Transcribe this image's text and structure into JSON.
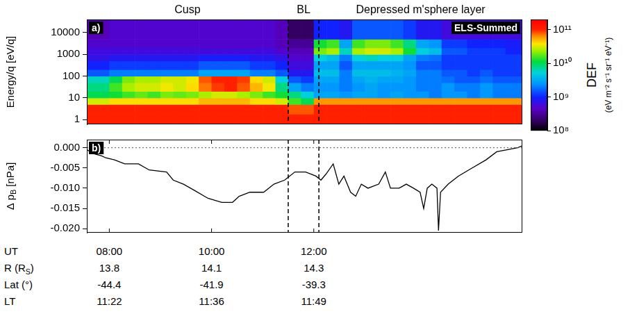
{
  "chart_data": [
    {
      "type": "heatmap",
      "panel": "a)",
      "inset_label": "ELS-Summed",
      "regions": [
        "Cusp",
        "BL",
        "Depressed m'sphere layer"
      ],
      "boundaries": [
        11.5,
        12.1
      ],
      "ylabel": "Energy/q [eV/q]",
      "log": "y",
      "grid": false,
      "tick_labels": "y",
      "xlim": [
        7.56,
        16.08
      ],
      "ylim": [
        0.6,
        40000
      ],
      "yticks": [
        1,
        10,
        100,
        1000,
        10000
      ],
      "time_bins": [
        7.56,
        8,
        8.25,
        8.5,
        8.75,
        9,
        9.25,
        9.5,
        9.75,
        10,
        10.25,
        10.5,
        10.75,
        11,
        11.25,
        11.5,
        11.75,
        12,
        12.25,
        12.5,
        12.75,
        13,
        13.25,
        13.5,
        13.75,
        14,
        14.25,
        14.5,
        14.75,
        15,
        15.25,
        15.5,
        15.75,
        16.08
      ],
      "energy_bins": [
        0.6,
        1.8,
        5,
        10,
        20,
        50,
        100,
        200,
        500,
        1000,
        2000,
        5000,
        40000
      ],
      "def": [
        [
          100000000000.0,
          100000000000.0,
          100000000000.0,
          100000000000.0,
          100000000000.0,
          100000000000.0,
          100000000000.0,
          100000000000.0,
          100000000000.0,
          100000000000.0,
          100000000000.0,
          100000000000.0,
          100000000000.0,
          100000000000.0,
          100000000000.0,
          100000000000.0,
          100000000000.0,
          100000000000.0,
          100000000000.0,
          100000000000.0,
          100000000000.0,
          100000000000.0,
          100000000000.0,
          100000000000.0,
          100000000000.0,
          100000000000.0,
          100000000000.0,
          100000000000.0,
          100000000000.0,
          100000000000.0,
          100000000000.0,
          100000000000.0,
          100000000000.0
        ],
        [
          100000000000.0,
          100000000000.0,
          100000000000.0,
          100000000000.0,
          100000000000.0,
          100000000000.0,
          100000000000.0,
          100000000000.0,
          100000000000.0,
          100000000000.0,
          100000000000.0,
          100000000000.0,
          100000000000.0,
          100000000000.0,
          100000000000.0,
          80000000000.0,
          80000000000.0,
          100000000000.0,
          100000000000.0,
          100000000000.0,
          100000000000.0,
          100000000000.0,
          100000000000.0,
          100000000000.0,
          100000000000.0,
          100000000000.0,
          100000000000.0,
          100000000000.0,
          100000000000.0,
          100000000000.0,
          100000000000.0,
          100000000000.0,
          100000000000.0
        ],
        [
          30000000000.0,
          40000000000.0,
          40000000000.0,
          40000000000.0,
          40000000000.0,
          40000000000.0,
          40000000000.0,
          40000000000.0,
          50000000000.0,
          50000000000.0,
          50000000000.0,
          50000000000.0,
          40000000000.0,
          40000000000.0,
          30000000000.0,
          15000000000.0,
          10000000000.0,
          60000000000.0,
          60000000000.0,
          60000000000.0,
          60000000000.0,
          60000000000.0,
          60000000000.0,
          60000000000.0,
          60000000000.0,
          60000000000.0,
          60000000000.0,
          60000000000.0,
          60000000000.0,
          60000000000.0,
          60000000000.0,
          60000000000.0,
          60000000000.0
        ],
        [
          10000000000.0,
          12000000000.0,
          15000000000.0,
          18000000000.0,
          15000000000.0,
          20000000000.0,
          18000000000.0,
          20000000000.0,
          25000000000.0,
          30000000000.0,
          30000000000.0,
          25000000000.0,
          20000000000.0,
          15000000000.0,
          12000000000.0,
          8000000000.0,
          5000000000.0,
          3000000000.0,
          3000000000.0,
          2500000000.0,
          3000000000.0,
          3000000000.0,
          2500000000.0,
          3000000000.0,
          2500000000.0,
          2500000000.0,
          2000000000.0,
          2500000000.0,
          2500000000.0,
          2000000000.0,
          2500000000.0,
          2000000000.0,
          2000000000.0
        ],
        [
          8000000000.0,
          15000000000.0,
          25000000000.0,
          30000000000.0,
          30000000000.0,
          35000000000.0,
          30000000000.0,
          40000000000.0,
          70000000000.0,
          90000000000.0,
          100000000000.0,
          80000000000.0,
          50000000000.0,
          35000000000.0,
          8000000000.0,
          3000000000.0,
          2000000000.0,
          2500000000.0,
          2500000000.0,
          2000000000.0,
          2500000000.0,
          3000000000.0,
          2500000000.0,
          2500000000.0,
          2500000000.0,
          2000000000.0,
          2000000000.0,
          2500000000.0,
          2000000000.0,
          2000000000.0,
          2500000000.0,
          2000000000.0,
          2000000000.0
        ],
        [
          6000000000.0,
          10000000000.0,
          20000000000.0,
          25000000000.0,
          25000000000.0,
          30000000000.0,
          30000000000.0,
          35000000000.0,
          80000000000.0,
          100000000000.0,
          100000000000.0,
          90000000000.0,
          40000000000.0,
          30000000000.0,
          5000000000.0,
          1500000000.0,
          1200000000.0,
          3000000000.0,
          3000000000.0,
          2000000000.0,
          3000000000.0,
          3500000000.0,
          3000000000.0,
          3000000000.0,
          2500000000.0,
          2000000000.0,
          2000000000.0,
          1800000000.0,
          1500000000.0,
          1500000000.0,
          1800000000.0,
          1500000000.0,
          1500000000.0
        ],
        [
          1500000000.0,
          2000000000.0,
          2000000000.0,
          2000000000.0,
          2000000000.0,
          2000000000.0,
          2000000000.0,
          2000000000.0,
          3000000000.0,
          3000000000.0,
          3000000000.0,
          3000000000.0,
          2000000000.0,
          2000000000.0,
          1500000000.0,
          800000000.0,
          800000000.0,
          4000000000.0,
          4000000000.0,
          2000000000.0,
          4000000000.0,
          4000000000.0,
          4000000000.0,
          3500000000.0,
          3000000000.0,
          2000000000.0,
          2000000000.0,
          1500000000.0,
          1500000000.0,
          1200000000.0,
          1500000000.0,
          1200000000.0,
          1200000000.0
        ],
        [
          1000000000.0,
          1200000000.0,
          1200000000.0,
          1200000000.0,
          1200000000.0,
          1200000000.0,
          1200000000.0,
          1200000000.0,
          1500000000.0,
          1500000000.0,
          1500000000.0,
          1500000000.0,
          1200000000.0,
          1200000000.0,
          1000000000.0,
          600000000.0,
          600000000.0,
          3000000000.0,
          3000000000.0,
          1500000000.0,
          3000000000.0,
          3000000000.0,
          3000000000.0,
          3000000000.0,
          2500000000.0,
          1500000000.0,
          1500000000.0,
          1200000000.0,
          1200000000.0,
          1200000000.0,
          1200000000.0,
          1200000000.0,
          1200000000.0
        ],
        [
          700000000.0,
          800000000.0,
          800000000.0,
          800000000.0,
          800000000.0,
          800000000.0,
          800000000.0,
          800000000.0,
          900000000.0,
          900000000.0,
          900000000.0,
          900000000.0,
          800000000.0,
          800000000.0,
          700000000.0,
          500000000.0,
          500000000.0,
          5000000000.0,
          4000000000.0,
          2000000000.0,
          5000000000.0,
          6000000000.0,
          5000000000.0,
          5000000000.0,
          3000000000.0,
          2000000000.0,
          1800000000.0,
          1200000000.0,
          1200000000.0,
          1200000000.0,
          1200000000.0,
          1200000000.0,
          1200000000.0
        ],
        [
          600000000.0,
          600000000.0,
          600000000.0,
          600000000.0,
          600000000.0,
          600000000.0,
          600000000.0,
          600000000.0,
          600000000.0,
          600000000.0,
          600000000.0,
          600000000.0,
          600000000.0,
          600000000.0,
          500000000.0,
          400000000.0,
          400000000.0,
          20000000000.0,
          25000000000.0,
          6000000000.0,
          25000000000.0,
          30000000000.0,
          30000000000.0,
          25000000000.0,
          12000000000.0,
          5000000000.0,
          4000000000.0,
          1500000000.0,
          1500000000.0,
          1200000000.0,
          1200000000.0,
          1200000000.0,
          1000000000.0
        ],
        [
          500000000.0,
          500000000.0,
          500000000.0,
          500000000.0,
          500000000.0,
          500000000.0,
          500000000.0,
          500000000.0,
          500000000.0,
          500000000.0,
          500000000.0,
          500000000.0,
          500000000.0,
          500000000.0,
          400000000.0,
          300000000.0,
          300000000.0,
          12000000000.0,
          15000000000.0,
          3000000000.0,
          15000000000.0,
          20000000000.0,
          20000000000.0,
          15000000000.0,
          8000000000.0,
          3000000000.0,
          2500000000.0,
          1200000000.0,
          1200000000.0,
          1000000000.0,
          1000000000.0,
          1000000000.0,
          900000000.0
        ],
        [
          400000000.0,
          500000000.0,
          500000000.0,
          500000000.0,
          500000000.0,
          500000000.0,
          500000000.0,
          500000000.0,
          500000000.0,
          500000000.0,
          500000000.0,
          500000000.0,
          500000000.0,
          500000000.0,
          400000000.0,
          200000000.0,
          200000000.0,
          1000000000.0,
          1000000000.0,
          800000000.0,
          1500000000.0,
          1500000000.0,
          1500000000.0,
          1500000000.0,
          1200000000.0,
          800000000.0,
          800000000.0,
          600000000.0,
          600000000.0,
          600000000.0,
          600000000.0,
          600000000.0,
          600000000.0
        ]
      ],
      "colorbar": {
        "label": "DEF",
        "units": "(eV m⁻² s⁻¹ sr⁻¹ eV⁻¹)",
        "log": true,
        "range": [
          100000000.0,
          200000000000.0
        ],
        "ticks": [
          {
            "value": 100000000.0,
            "label": "10⁸"
          },
          {
            "value": 1000000000.0,
            "label": "10⁹"
          },
          {
            "value": 10000000000.0,
            "label": "10¹⁰"
          },
          {
            "value": 100000000000.0,
            "label": "10¹¹"
          }
        ]
      }
    },
    {
      "type": "line",
      "panel": "b)",
      "ylabel": [
        {
          "text": "Δ p"
        },
        {
          "text": "B",
          "sub": true
        },
        {
          "text": " [nPa]"
        }
      ],
      "xlabel": "UT",
      "grid": false,
      "color": "#000000",
      "hline": 0,
      "boundaries": [
        11.5,
        12.1
      ],
      "xlim": [
        7.56,
        16.08
      ],
      "ylim": [
        -0.021,
        0.002
      ],
      "xticks": [
        {
          "value": 8,
          "label": "08:00"
        },
        {
          "value": 10,
          "label": "10:00"
        },
        {
          "value": 12,
          "label": "12:00"
        }
      ],
      "yticks": [
        {
          "value": 0,
          "label": "0.000"
        },
        {
          "value": -0.005,
          "label": "-0.005"
        },
        {
          "value": -0.01,
          "label": "-0.010"
        },
        {
          "value": -0.015,
          "label": "-0.015"
        },
        {
          "value": -0.02,
          "label": "-0.020"
        }
      ],
      "x": [
        7.56,
        7.7,
        7.85,
        7.93,
        8.1,
        8.3,
        8.57,
        8.78,
        9.12,
        9.25,
        9.45,
        9.66,
        9.93,
        10.2,
        10.41,
        10.54,
        10.75,
        11.02,
        11.22,
        11.43,
        11.63,
        11.84,
        12.04,
        12.14,
        12.24,
        12.38,
        12.49,
        12.59,
        12.72,
        12.82,
        12.93,
        13.06,
        13.27,
        13.4,
        13.5,
        13.67,
        13.81,
        13.95,
        14.08,
        14.15,
        14.22,
        14.31,
        14.41,
        14.44,
        14.48,
        14.63,
        14.83,
        15.1,
        15.37,
        15.58,
        15.78,
        15.99,
        16.08
      ],
      "values": [
        -0.0005,
        -0.0015,
        -0.002,
        -0.0025,
        -0.003,
        -0.004,
        -0.004,
        -0.0055,
        -0.006,
        -0.008,
        -0.009,
        -0.0105,
        -0.0125,
        -0.0135,
        -0.0135,
        -0.012,
        -0.011,
        -0.011,
        -0.009,
        -0.008,
        -0.006,
        -0.006,
        -0.007,
        -0.008,
        -0.0065,
        -0.004,
        -0.009,
        -0.007,
        -0.011,
        -0.012,
        -0.009,
        -0.01,
        -0.009,
        -0.006,
        -0.01,
        -0.01,
        -0.009,
        -0.01,
        -0.011,
        -0.015,
        -0.01,
        -0.009,
        -0.01,
        -0.0205,
        -0.011,
        -0.009,
        -0.007,
        -0.005,
        -0.003,
        -0.001,
        -0.0005,
        0,
        0.0005
      ],
      "ephemeris": [
        {
          "label": [
            {
              "text": "R (R"
            },
            {
              "text": "S",
              "sub": true
            },
            {
              "text": ")"
            }
          ],
          "values": [
            13.8,
            14.1,
            14.3
          ]
        },
        {
          "label": "Lat (°)",
          "values": [
            -44.4,
            -41.9,
            -39.3
          ]
        },
        {
          "label": "LT",
          "values": [
            "11:22",
            "11:36",
            "11:49"
          ]
        }
      ]
    }
  ]
}
